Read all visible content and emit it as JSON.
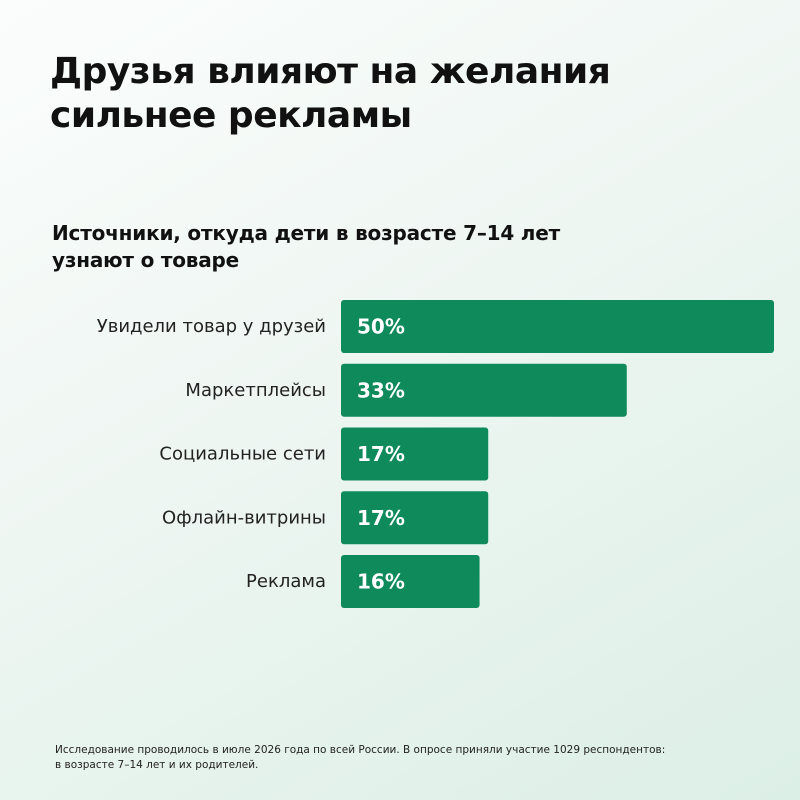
{
  "headline": {
    "line1": "Друзья влияют на желания",
    "line2": "сильнее рекламы"
  },
  "chart_data": {
    "type": "bar",
    "orientation": "horizontal",
    "title_lines": [
      "Источники, откуда дети в возрасте 7–14 лет",
      "узнают о товаре"
    ],
    "categories": [
      "Увидели товар у друзей",
      "Маркетплейсы",
      "Социальные сети",
      "Офлайн-витрины",
      "Реклама"
    ],
    "values": [
      50,
      33,
      17,
      17,
      16
    ],
    "value_labels": [
      "50%",
      "33%",
      "17%",
      "17%",
      "16%"
    ],
    "unit": "%",
    "xlim": [
      0,
      50
    ],
    "grid": false,
    "legend": "none",
    "bar_color": "#0f8a5a",
    "label_color": "#ffffff"
  },
  "footnote": {
    "line1": "Исследование проводилось в июле 2026 года по всей России. В опросе приняли участие 1029 респондентов:",
    "line2": "в возрасте 7–14 лет и их родителей."
  }
}
